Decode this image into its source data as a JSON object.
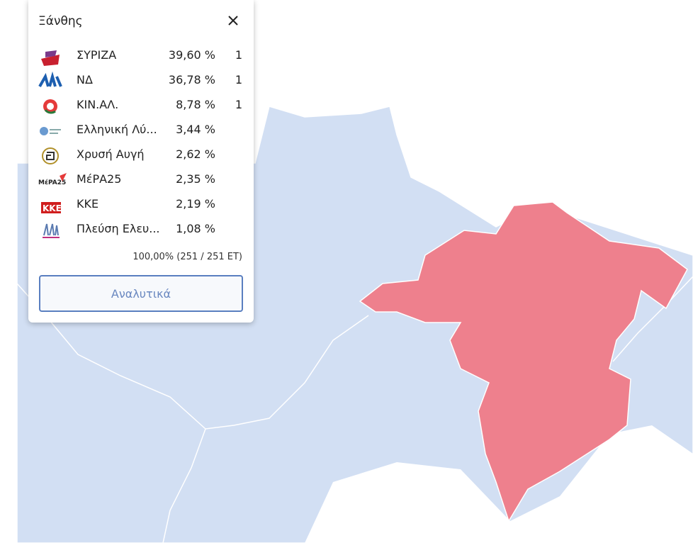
{
  "popup": {
    "title": "Ξάνθης",
    "rows": [
      {
        "party": "ΣΥΡΙΖΑ",
        "share": "39,60 %",
        "seats": "1"
      },
      {
        "party": "ΝΔ",
        "share": "36,78 %",
        "seats": "1"
      },
      {
        "party": "ΚΙΝ.ΑΛ.",
        "share": "8,78 %",
        "seats": "1"
      },
      {
        "party": "Ελληνική Λύ...",
        "share": "3,44 %"
      },
      {
        "party": "Χρυσή Αυγή",
        "share": "2,62 %"
      },
      {
        "party": "ΜέΡΑ25",
        "share": "2,35 %"
      },
      {
        "party": "ΚΚΕ",
        "share": "2,19 %"
      },
      {
        "party": "Πλεύση Ελευ...",
        "share": "1,08 %"
      }
    ],
    "footer": "100,00% (251 / 251 ET)",
    "button": "Αναλυτικά"
  }
}
